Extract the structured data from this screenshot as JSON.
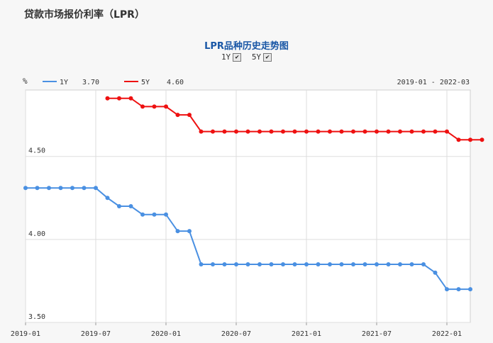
{
  "page_title": "贷款市场报价利率（LPR）",
  "chart_title": "LPR品种历史走势图",
  "toggles": [
    {
      "label": "1Y",
      "checked": true
    },
    {
      "label": "5Y",
      "checked": true
    }
  ],
  "legend": [
    {
      "name": "1Y",
      "value": "3.70",
      "color": "#4a90e2"
    },
    {
      "name": "5Y",
      "value": "4.60",
      "color": "#ee1111"
    }
  ],
  "date_range": "2019-01 - 2022-03",
  "unit": "%",
  "chart_data": {
    "type": "line",
    "title": "LPR品种历史走势图",
    "xlabel": "",
    "ylabel": "%",
    "ylim": [
      3.5,
      4.9
    ],
    "y_ticks": [
      "4.50",
      "4.00",
      "3.50"
    ],
    "x_ticks": [
      "2019-01",
      "2019-07",
      "2020-01",
      "2020-07",
      "2021-01",
      "2021-07",
      "2022-01"
    ],
    "grid": true,
    "legend_position": "top-left",
    "series": [
      {
        "name": "1Y",
        "color": "#4a90e2",
        "start": "2019-01",
        "values": [
          4.31,
          4.31,
          4.31,
          4.31,
          4.31,
          4.31,
          4.31,
          4.25,
          4.2,
          4.2,
          4.15,
          4.15,
          4.15,
          4.05,
          4.05,
          3.85,
          3.85,
          3.85,
          3.85,
          3.85,
          3.85,
          3.85,
          3.85,
          3.85,
          3.85,
          3.85,
          3.85,
          3.85,
          3.85,
          3.85,
          3.85,
          3.85,
          3.85,
          3.85,
          3.85,
          3.8,
          3.7,
          3.7,
          3.7
        ]
      },
      {
        "name": "5Y",
        "color": "#ee1111",
        "start": "2019-08",
        "values": [
          4.85,
          4.85,
          4.85,
          4.8,
          4.8,
          4.8,
          4.75,
          4.75,
          4.65,
          4.65,
          4.65,
          4.65,
          4.65,
          4.65,
          4.65,
          4.65,
          4.65,
          4.65,
          4.65,
          4.65,
          4.65,
          4.65,
          4.65,
          4.65,
          4.65,
          4.65,
          4.65,
          4.65,
          4.65,
          4.65,
          4.6,
          4.6,
          4.6
        ]
      }
    ]
  }
}
